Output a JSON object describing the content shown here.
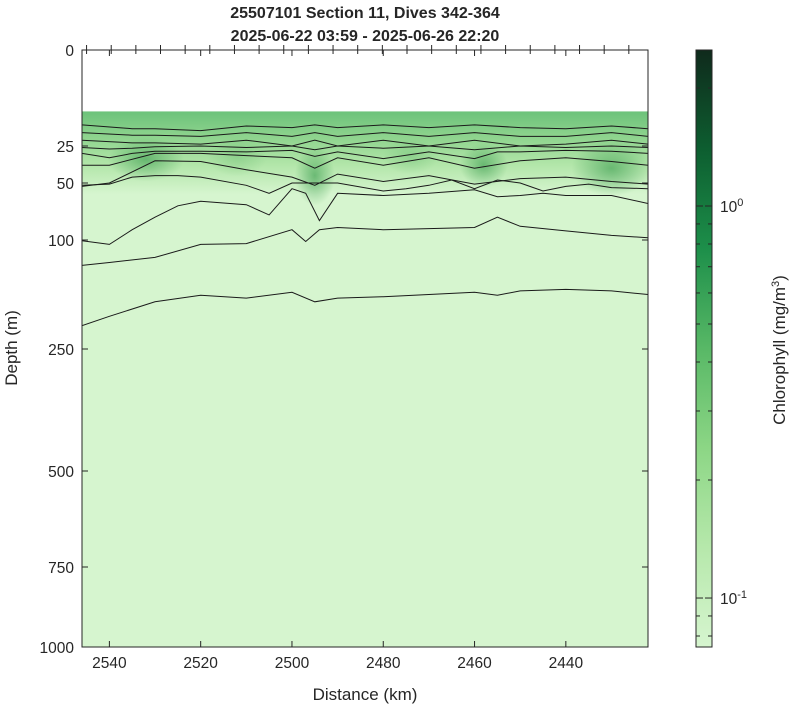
{
  "chart_data": {
    "type": "heatmap",
    "title": [
      "25507101 Section 11, Dives 342-364",
      "2025-06-22 03:59 - 2025-06-26 22:20"
    ],
    "xlabel": "Distance (km)",
    "ylabel": "Depth (m)",
    "colorbar_label": "Chlorophyll (mg/m",
    "colorbar_label_sup": "3",
    "colorbar_label_end": ")",
    "xlim": [
      2546,
      2422
    ],
    "x_reversed": true,
    "xticks": [
      2540,
      2520,
      2500,
      2480,
      2460,
      2440
    ],
    "xtick_labels": [
      "2540",
      "2520",
      "2500",
      "2480",
      "2460",
      "2440"
    ],
    "yticks": [
      0,
      25,
      50,
      100,
      250,
      500,
      750,
      1000
    ],
    "ytick_labels": [
      "0",
      "25",
      "50",
      "100",
      "250",
      "500",
      "750",
      "1000"
    ],
    "depth_axis_nonlinear": true,
    "data_top_depth": 16,
    "colorbar_scale": "log",
    "colorbar_range": [
      0.075,
      2.5
    ],
    "colorbar_ticks": [
      0.1,
      1
    ],
    "colorbar_tick_labels": [
      {
        "base": "10",
        "exp": "-1"
      },
      {
        "base": "10",
        "exp": "0"
      }
    ],
    "colormap": [
      "#d6f5cf",
      "#b6e8ab",
      "#8cd685",
      "#58b866",
      "#1d8f4a",
      "#0d5e30",
      "#0f2a1c"
    ],
    "background_color": "#d6f5cf",
    "contour_color": "#1a1a1a",
    "contours": [
      {
        "x": [
          2546,
          2535,
          2530,
          2520,
          2510,
          2500,
          2495,
          2490,
          2480,
          2470,
          2460,
          2450,
          2440,
          2430,
          2422
        ],
        "depth": [
          19.5,
          20.5,
          20.5,
          21,
          19.8,
          20.2,
          19.5,
          20.2,
          19.5,
          20.2,
          19.5,
          20.2,
          20.5,
          19.8,
          20.5
        ]
      },
      {
        "x": [
          2546,
          2535,
          2530,
          2520,
          2510,
          2500,
          2495,
          2490,
          2480,
          2470,
          2460,
          2450,
          2440,
          2430,
          2422
        ],
        "depth": [
          21.5,
          22.2,
          22.2,
          22.5,
          21.5,
          22.5,
          21.5,
          22.5,
          21.5,
          22.5,
          21.5,
          22.5,
          22.5,
          21.5,
          22.5
        ]
      },
      {
        "x": [
          2546,
          2535,
          2530,
          2520,
          2510,
          2500,
          2495,
          2490,
          2480,
          2470,
          2460,
          2450,
          2440,
          2430,
          2422
        ],
        "depth": [
          23.5,
          24.2,
          24.2,
          24.5,
          23.5,
          25,
          23.5,
          25,
          23.5,
          25,
          23.5,
          25,
          24.5,
          23.5,
          24.5
        ]
      },
      {
        "x": [
          2546,
          2540,
          2535,
          2530,
          2520,
          2510,
          2500,
          2495,
          2490,
          2480,
          2470,
          2460,
          2450,
          2440,
          2430,
          2422
        ],
        "depth": [
          26,
          27,
          26.5,
          25.5,
          25,
          26,
          25,
          27.5,
          25,
          26.5,
          25,
          27.5,
          25,
          26,
          25,
          26
        ]
      },
      {
        "x": [
          2546,
          2540,
          2535,
          2530,
          2520,
          2510,
          2500,
          2495,
          2490,
          2480,
          2470,
          2460,
          2455,
          2450,
          2440,
          2430,
          2422
        ],
        "depth": [
          30,
          33,
          30,
          28.5,
          28.5,
          29,
          28,
          32,
          29,
          33.5,
          29,
          33.5,
          29,
          29,
          28,
          28.5,
          30
        ]
      },
      {
        "x": [
          2546,
          2540,
          2530,
          2520,
          2510,
          2500,
          2495,
          2490,
          2480,
          2470,
          2460,
          2450,
          2440,
          2430,
          2422
        ],
        "depth": [
          38,
          38,
          30,
          30,
          31.5,
          33,
          40,
          33,
          38,
          33,
          40,
          35,
          33,
          35.5,
          38
        ]
      },
      {
        "x": [
          2546,
          2540,
          2530,
          2520,
          2510,
          2500,
          2495,
          2490,
          2480,
          2470,
          2460,
          2450,
          2440,
          2430,
          2422
        ],
        "depth": [
          53,
          50,
          35,
          35.5,
          41,
          46,
          52,
          44,
          49,
          45,
          51,
          47,
          46,
          49,
          51
        ]
      },
      {
        "x": [
          2546,
          2540,
          2535,
          2530,
          2525,
          2520,
          2510,
          2505,
          2500,
          2495,
          2490,
          2480,
          2475,
          2470,
          2465,
          2460,
          2455,
          2450,
          2445,
          2440,
          2435,
          2430,
          2422
        ],
        "depth": [
          52,
          51,
          46,
          45,
          45,
          46,
          52,
          59,
          50,
          50,
          50,
          57,
          55,
          52,
          48,
          55,
          48,
          50,
          57,
          53,
          51,
          54,
          55
        ]
      },
      {
        "x": [
          2546,
          2540,
          2535,
          2530,
          2525,
          2520,
          2510,
          2505,
          2500,
          2497,
          2494,
          2490,
          2480,
          2470,
          2460,
          2455,
          2450,
          2445,
          2440,
          2430,
          2422
        ],
        "depth": [
          101,
          106,
          91,
          80,
          70,
          66,
          69,
          78,
          55,
          59,
          83,
          59,
          61,
          59,
          56,
          62,
          61,
          59,
          61,
          61,
          68
        ]
      },
      {
        "x": [
          2546,
          2540,
          2530,
          2520,
          2510,
          2500,
          2497,
          2494,
          2490,
          2480,
          2470,
          2460,
          2455,
          2450,
          2440,
          2430,
          2422
        ],
        "depth": [
          135,
          131,
          124,
          106,
          105,
          91,
          102,
          91,
          89,
          91,
          90,
          89,
          80,
          88,
          92,
          96,
          98
        ]
      },
      {
        "x": [
          2546,
          2540,
          2530,
          2520,
          2510,
          2500,
          2495,
          2490,
          2480,
          2470,
          2460,
          2455,
          2450,
          2440,
          2435,
          2430,
          2422
        ],
        "depth": [
          218,
          205,
          185,
          176,
          180,
          172,
          185,
          180,
          178,
          175,
          172,
          176,
          170,
          168,
          169,
          170,
          175
        ]
      }
    ]
  }
}
